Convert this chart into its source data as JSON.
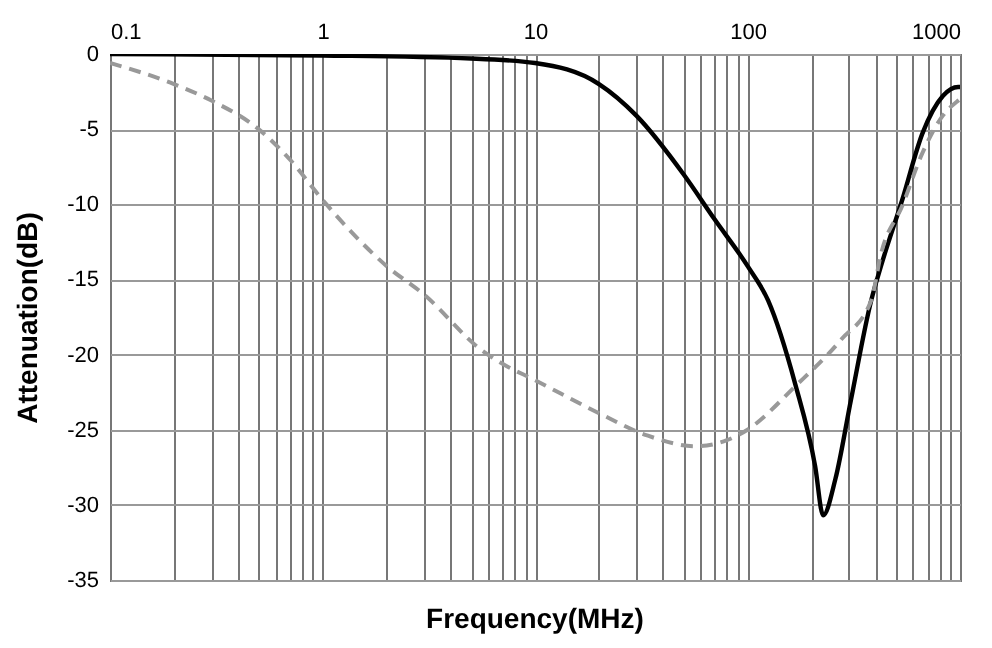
{
  "chart_data": {
    "type": "line",
    "xlabel": "Frequency(MHz)",
    "ylabel": "Attenuation(dB)",
    "log": "x",
    "grid": true,
    "xlim": [
      0.1,
      1000
    ],
    "xticks": [
      0.1,
      1,
      10,
      100,
      1000
    ],
    "ylim": [
      -35,
      0
    ],
    "yticks": [
      0,
      -5,
      -10,
      -15,
      -20,
      -25,
      -30,
      -35
    ],
    "marker": "none",
    "series": [
      {
        "color": "#000000",
        "line_style": "solid",
        "x": [
          0.1,
          1,
          5,
          10,
          20,
          30,
          50,
          70,
          100,
          125,
          168,
          208,
          227,
          259,
          307,
          382,
          425,
          535,
          665,
          830,
          980,
          1000
        ],
        "values": [
          0,
          -0.1,
          -0.3,
          -0.6,
          -2.0,
          -4.1,
          -8.0,
          -11.0,
          -14.1,
          -16.4,
          -22,
          -27.4,
          -30.7,
          -28.3,
          -23,
          -16.4,
          -14.1,
          -9.7,
          -5.3,
          -2.8,
          -2.2,
          -2.2
        ]
      },
      {
        "color": "#999999",
        "line_style": "dashed",
        "x": [
          0.1,
          0.2,
          0.3,
          0.5,
          0.7,
          1,
          2,
          3,
          5.6,
          7,
          10,
          20,
          34,
          57,
          80,
          100,
          168,
          276,
          382,
          425,
          535,
          665,
          830,
          980,
          1000
        ],
        "values": [
          -0.6,
          -2.0,
          -3.1,
          -5.0,
          -7.0,
          -9.7,
          -14.1,
          -16.0,
          -19.7,
          -20.6,
          -21.7,
          -23.9,
          -25.4,
          -26.1,
          -25.7,
          -25.0,
          -22.1,
          -19.0,
          -16.4,
          -13.3,
          -10.1,
          -6.6,
          -4.1,
          -3.1,
          -3.0
        ]
      }
    ]
  }
}
